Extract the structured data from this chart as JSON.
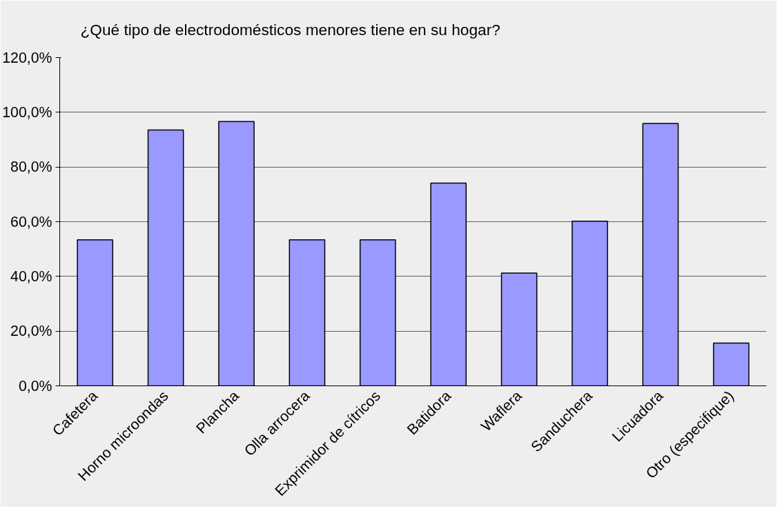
{
  "chart_data": {
    "type": "bar",
    "title": "¿Qué tipo de electrodomésticos menores tiene en su hogar?",
    "categories": [
      "Cafetera",
      "Horno microondas",
      "Plancha",
      "Olla arrocera",
      "Exprimidor de cítricos",
      "Batidora",
      "Waflera",
      "Sanduchera",
      "Licuadora",
      "Otro (especifique)"
    ],
    "values": [
      53.4,
      93.5,
      96.6,
      53.4,
      53.4,
      74.1,
      41.2,
      60.2,
      95.9,
      15.6
    ],
    "color": "#9999ff",
    "ylim": [
      0,
      120
    ],
    "yticks": [
      {
        "value": 0,
        "label": "0,0%"
      },
      {
        "value": 20,
        "label": "20,0%"
      },
      {
        "value": 40,
        "label": "40,0%"
      },
      {
        "value": 60,
        "label": "60,0%"
      },
      {
        "value": 80,
        "label": "80,0%"
      },
      {
        "value": 100,
        "label": "100,0%"
      },
      {
        "value": 120,
        "label": "120,0%"
      }
    ],
    "grid": "y"
  }
}
